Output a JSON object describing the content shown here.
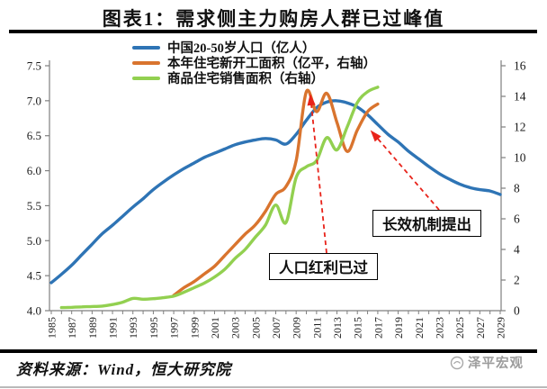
{
  "header": {
    "title": "图表1：需求侧主力购房人群已过峰值"
  },
  "legend": {
    "items": [
      {
        "label": "中国20-50岁人口（亿人）",
        "color": "#2e74b5"
      },
      {
        "label": "本年住宅新开工面积（亿平，右轴）",
        "color": "#d9742e"
      },
      {
        "label": "商品住宅销售面积（右轴）",
        "color": "#92d050"
      }
    ]
  },
  "chart_data": {
    "type": "line",
    "title": "图表1：需求侧主力购房人群已过峰值",
    "x_axis": {
      "min": 1985,
      "max": 2029,
      "ticks": [
        1985,
        1987,
        1989,
        1991,
        1993,
        1995,
        1997,
        1999,
        2001,
        2003,
        2005,
        2007,
        2009,
        2011,
        2013,
        2015,
        2017,
        2019,
        2021,
        2023,
        2025,
        2027,
        2029
      ]
    },
    "left_axis": {
      "min": 4.0,
      "max": 7.5,
      "ticks": [
        "7.5",
        "7.0",
        "6.5",
        "6.0",
        "5.5",
        "5.0",
        "4.5",
        "4.0"
      ]
    },
    "right_axis": {
      "min": 0,
      "max": 16,
      "ticks": [
        16,
        14,
        12,
        10,
        8,
        6,
        4,
        2,
        0
      ]
    },
    "series": [
      {
        "id": "population-20-50",
        "name": "中国20-50岁人口（亿人）",
        "color": "#2e74b5",
        "axis": "left",
        "start_year": 1985,
        "values": [
          4.4,
          4.52,
          4.65,
          4.8,
          4.95,
          5.1,
          5.22,
          5.35,
          5.48,
          5.6,
          5.73,
          5.84,
          5.94,
          6.03,
          6.11,
          6.19,
          6.25,
          6.31,
          6.37,
          6.41,
          6.44,
          6.46,
          6.44,
          6.38,
          6.52,
          6.72,
          6.9,
          6.98,
          7.0,
          6.97,
          6.91,
          6.8,
          6.66,
          6.52,
          6.41,
          6.28,
          6.17,
          6.06,
          5.96,
          5.88,
          5.81,
          5.76,
          5.73,
          5.71,
          5.66
        ]
      },
      {
        "id": "new-starts-area",
        "name": "本年住宅新开工面积（亿平，右轴）",
        "color": "#d9742e",
        "axis": "right",
        "start_year": 1997,
        "values": [
          1.0,
          1.5,
          1.9,
          2.4,
          2.9,
          3.6,
          4.3,
          5.0,
          5.6,
          6.5,
          7.6,
          8.1,
          9.8,
          14.3,
          13.0,
          14.2,
          12.3,
          10.4,
          11.8,
          13.0,
          13.5
        ]
      },
      {
        "id": "sales-area",
        "name": "商品住宅销售面积（右轴）",
        "color": "#92d050",
        "axis": "right",
        "start_year": 1986,
        "values": [
          0.2,
          0.22,
          0.25,
          0.27,
          0.3,
          0.4,
          0.55,
          0.8,
          0.75,
          0.78,
          0.85,
          0.95,
          1.2,
          1.5,
          1.8,
          2.2,
          2.7,
          3.4,
          4.0,
          4.8,
          5.6,
          6.9,
          5.75,
          8.7,
          9.4,
          9.8,
          11.3,
          10.5,
          12.0,
          13.6,
          14.3,
          14.6
        ]
      }
    ],
    "annotations": [
      {
        "text": "人口红利已过"
      },
      {
        "text": "长效机制提出"
      }
    ],
    "annotation_color": "#e8231a",
    "grid": false,
    "legend_position": "top"
  },
  "footer": {
    "source": "资料来源：Wind，恒大研究院",
    "logo_text": "泽平宏观"
  }
}
